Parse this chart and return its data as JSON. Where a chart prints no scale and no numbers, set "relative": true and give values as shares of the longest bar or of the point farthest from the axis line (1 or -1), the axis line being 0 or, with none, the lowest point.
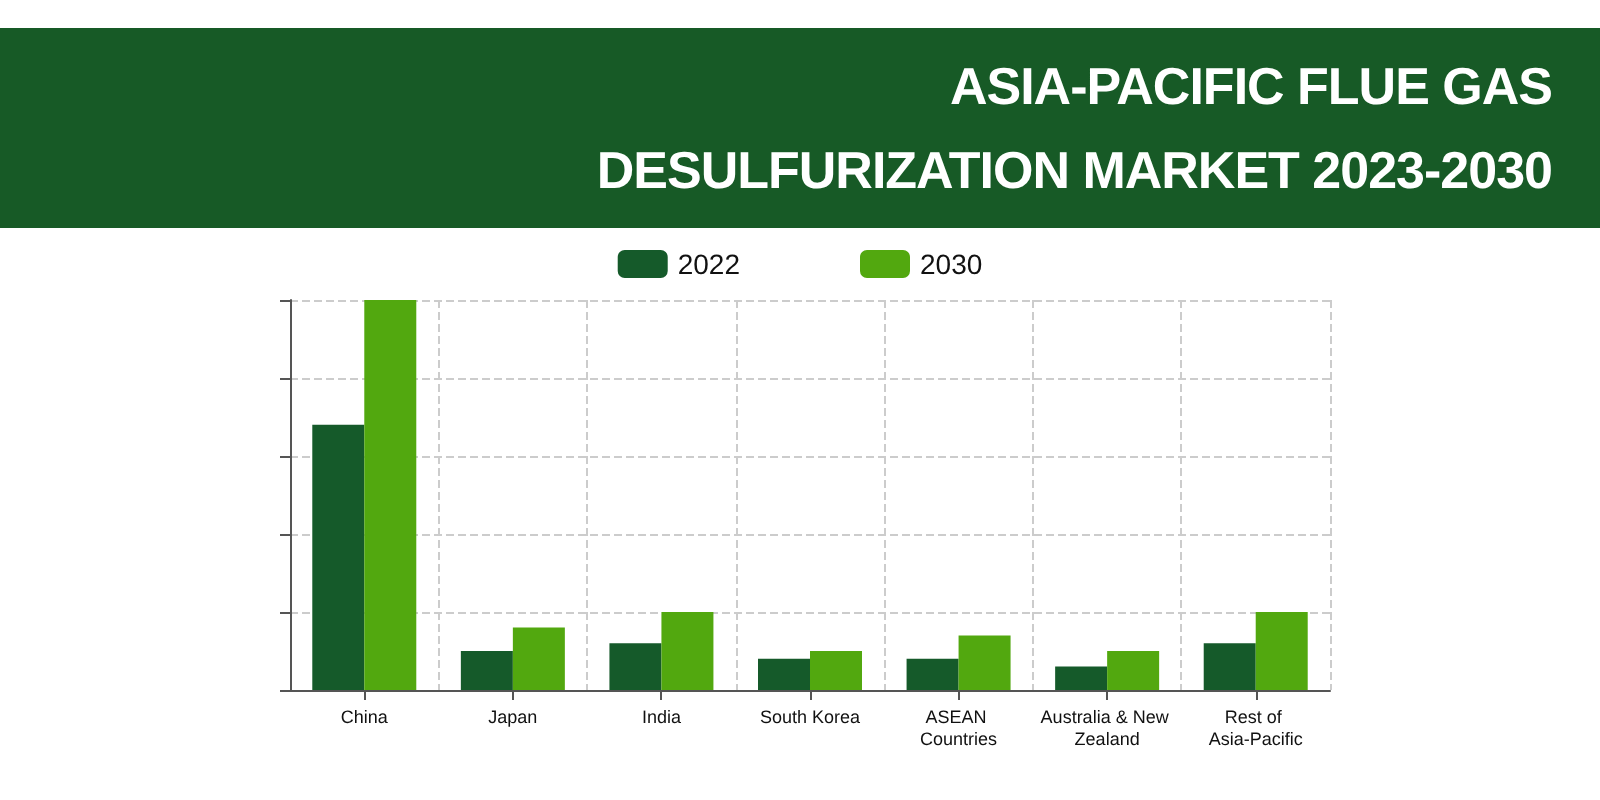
{
  "chart_data": {
    "type": "bar",
    "title": "ASIA-PACIFIC FLUE GAS DESULFURIZATION MARKET 2023-2030",
    "categories": [
      "China",
      "Japan",
      "India",
      "South Korea",
      "ASEAN Countries",
      "Australia & New Zealand",
      "Rest of Asia-Pacific"
    ],
    "relative": true,
    "grid": true,
    "legend": "top",
    "series": [
      {
        "name": "2022",
        "color": "#155a2a",
        "values": [
          0.68,
          0.1,
          0.12,
          0.08,
          0.08,
          0.06,
          0.12
        ]
      },
      {
        "name": "2030",
        "color": "#52a80f",
        "values": [
          1,
          0.16,
          0.2,
          0.1,
          0.14,
          0.1,
          0.2
        ]
      }
    ]
  }
}
